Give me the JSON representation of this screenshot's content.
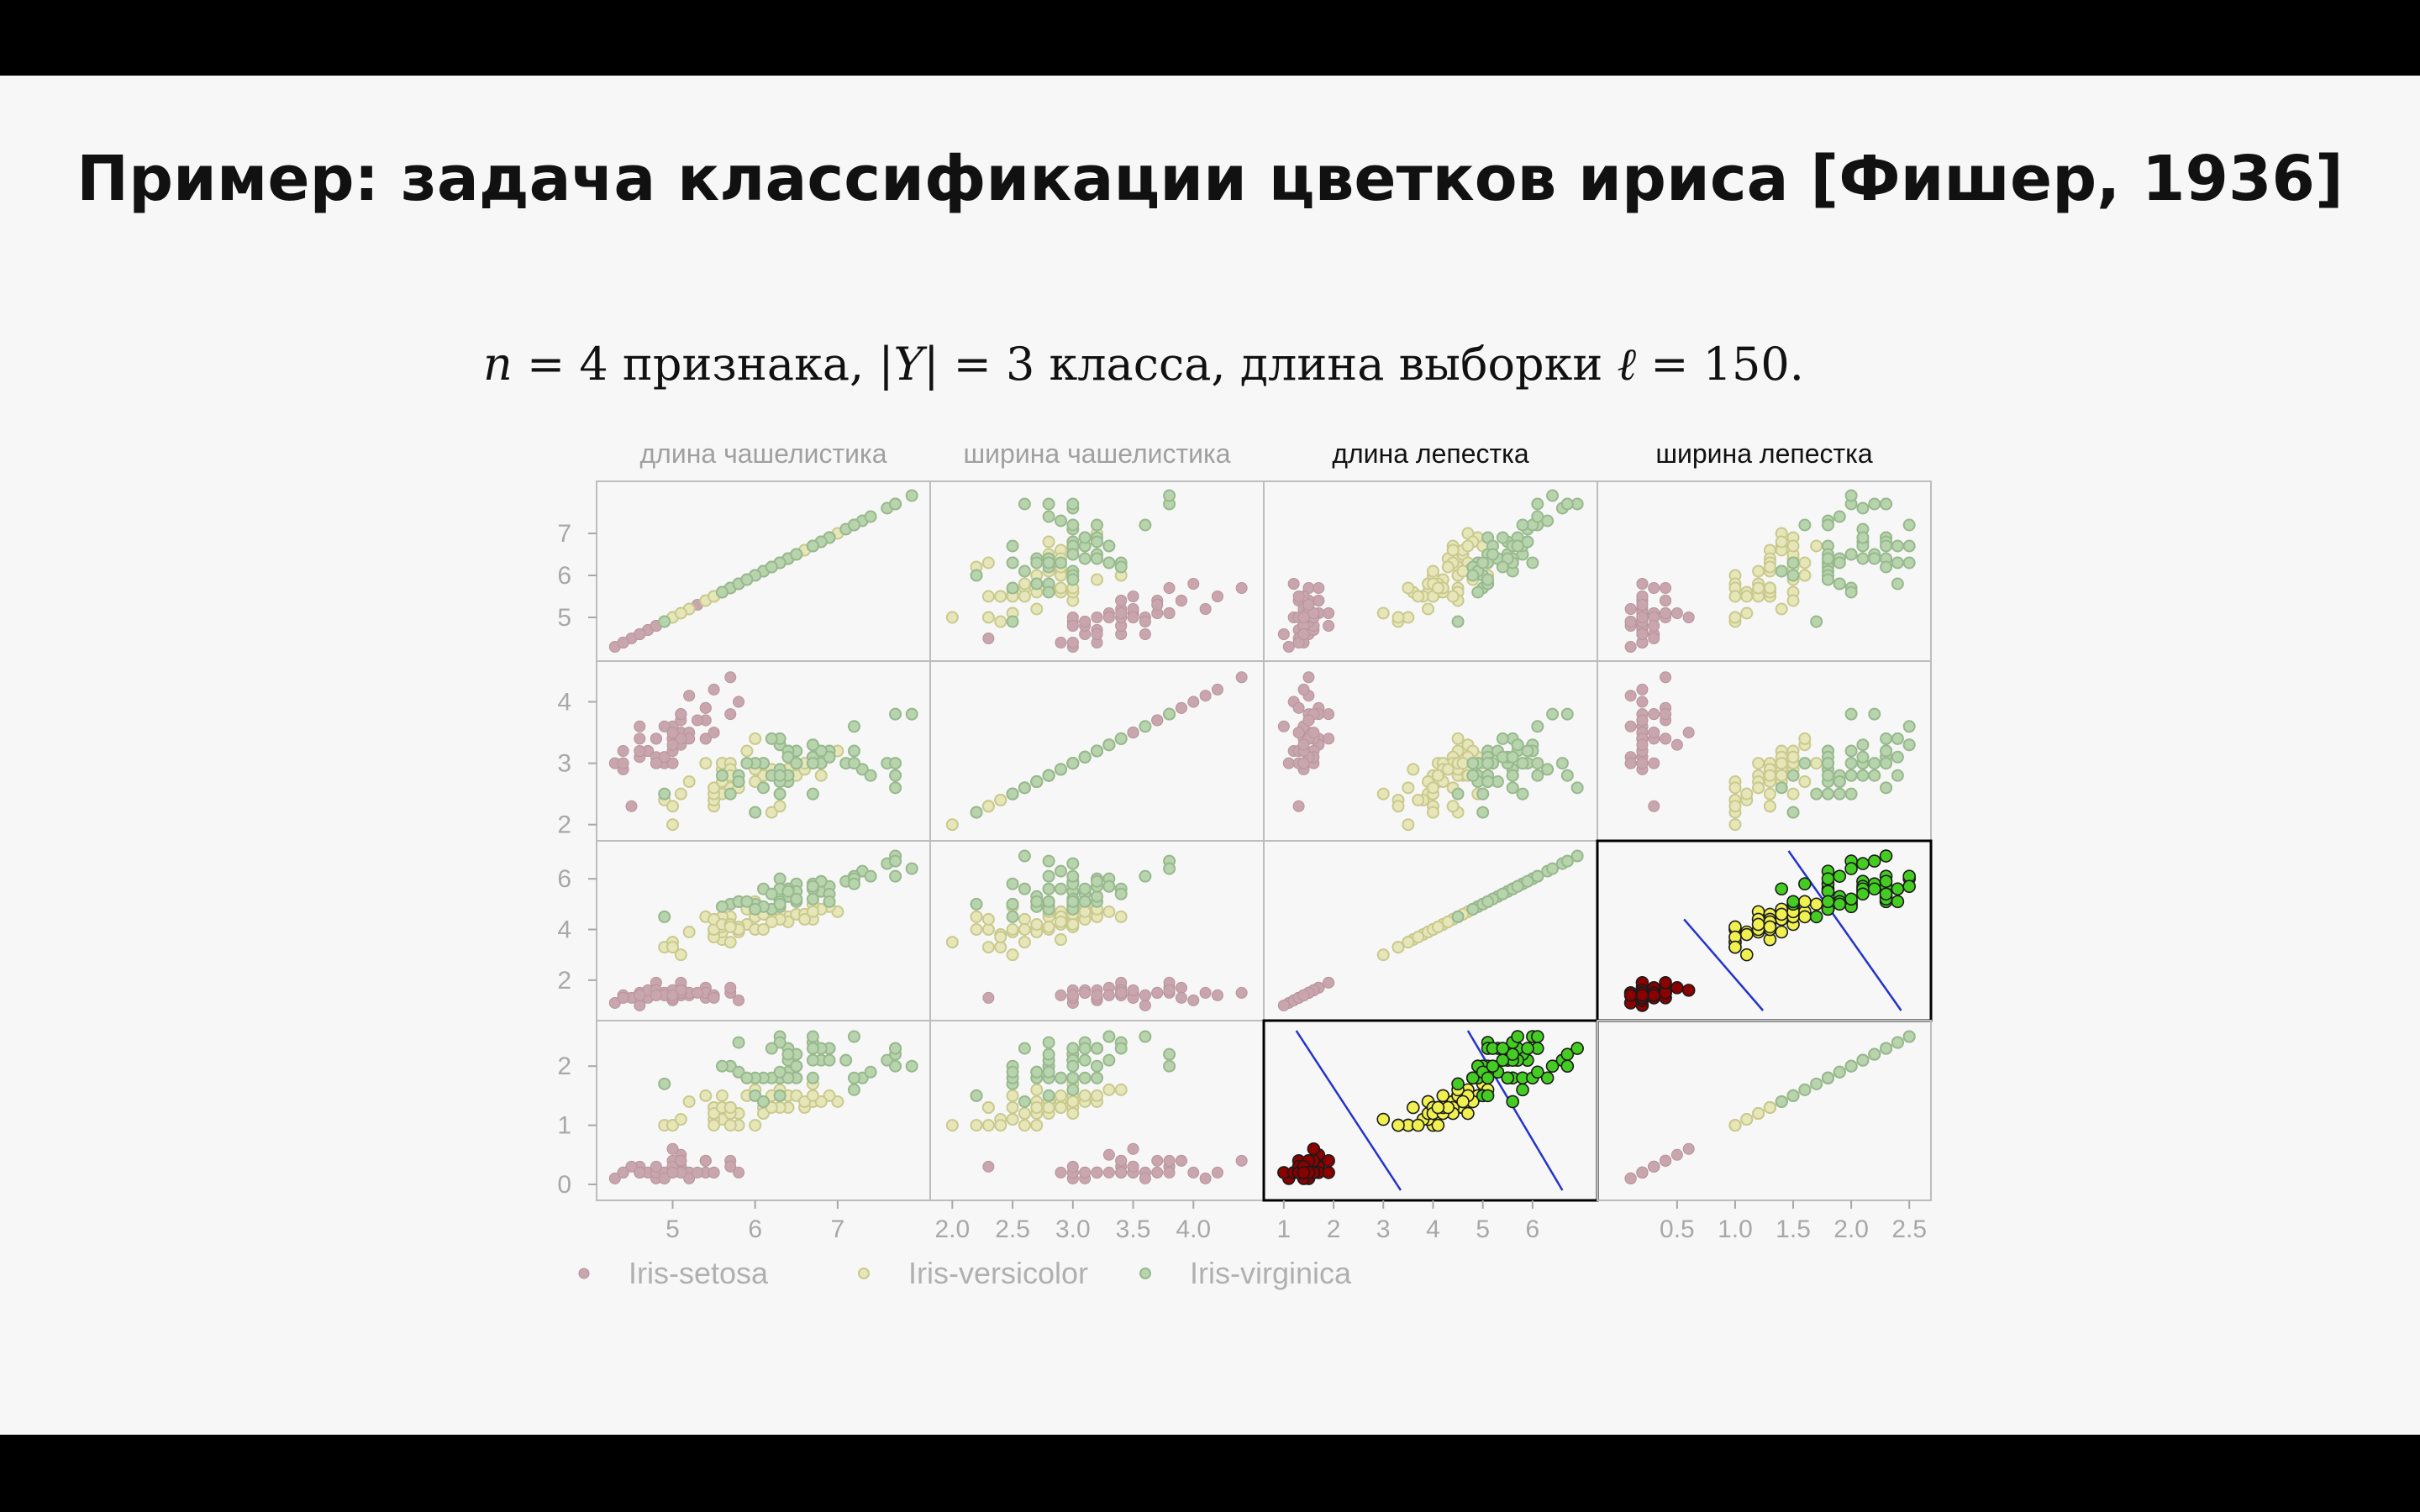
{
  "slide": {
    "title": "Пример: задача классификации цветков ириса [Фишер, 1936]",
    "subtitle": {
      "n_var": "n",
      "eq1": " = 4 признака, ",
      "y_open": "|",
      "y_var": "Y",
      "y_close": "|",
      "eq2": " = 3 класса, длина выборки ",
      "l_var": "ℓ",
      "eq3": " = 150."
    }
  },
  "colors": {
    "setosa_faded": "#c9a6ad",
    "versicolor_faded": "#e6e6b8",
    "virginica_faded": "#b7d4ad",
    "setosa": "#8b0000",
    "versicolor": "#f0f050",
    "virginica": "#44cc22",
    "separator_line": "#2233cc",
    "panel_border": "#bdbdbd",
    "highlight_border": "#000000"
  },
  "chart_data": {
    "type": "scatter",
    "variables": [
      {
        "key": "sl",
        "label": "длина чашелистика",
        "range": [
          4.2,
          8.0
        ],
        "left_ticks": [
          "5",
          "6",
          "7"
        ],
        "left_tick_values": [
          5,
          6,
          7
        ],
        "bottom_ticks": [
          "5",
          "6",
          "7"
        ],
        "bottom_tick_values": [
          5,
          6,
          7
        ]
      },
      {
        "key": "sw",
        "label": "ширина чашелистика",
        "range": [
          1.9,
          4.5
        ],
        "left_ticks": [
          "2",
          "3",
          "4"
        ],
        "left_tick_values": [
          2,
          3,
          4
        ],
        "bottom_ticks": [
          "2.0",
          "2.5",
          "3.0",
          "3.5",
          "4.0"
        ],
        "bottom_tick_values": [
          2.0,
          2.5,
          3.0,
          3.5,
          4.0
        ]
      },
      {
        "key": "pl",
        "label": "длина лепестка",
        "range": [
          0.8,
          7.1
        ],
        "left_ticks": [
          "2",
          "4",
          "6"
        ],
        "left_tick_values": [
          2,
          4,
          6
        ],
        "bottom_ticks": [
          "1",
          "2",
          "3",
          "4",
          "5",
          "6"
        ],
        "bottom_tick_values": [
          1,
          2,
          3,
          4,
          5,
          6
        ]
      },
      {
        "key": "pw",
        "label": "ширина лепестка",
        "range": [
          -0.1,
          2.6
        ],
        "left_ticks": [
          "0",
          "1",
          "2"
        ],
        "left_tick_values": [
          0,
          1,
          2
        ],
        "bottom_ticks": [
          "0.5",
          "1.0",
          "1.5",
          "2.0",
          "2.5"
        ],
        "bottom_tick_values": [
          0.5,
          1.0,
          1.5,
          2.0,
          2.5
        ]
      }
    ],
    "highlighted_panels": [
      {
        "row": 2,
        "col": 3,
        "lines": [
          [
            [
              0.56,
              4.4
            ],
            [
              1.24,
              0.8
            ]
          ],
          [
            [
              1.46,
              7.1
            ],
            [
              2.43,
              0.8
            ]
          ]
        ]
      },
      {
        "row": 3,
        "col": 2,
        "lines": [
          [
            [
              1.25,
              2.6
            ],
            [
              3.35,
              -0.1
            ]
          ],
          [
            [
              4.7,
              2.6
            ],
            [
              6.6,
              -0.1
            ]
          ]
        ]
      }
    ],
    "legend": {
      "placement": "bottom-left",
      "items": [
        {
          "label": "Iris-setosa"
        },
        {
          "label": "Iris-versicolor"
        },
        {
          "label": "Iris-virginica"
        }
      ]
    },
    "series": [
      {
        "class": "Iris-setosa",
        "points": [
          [
            5.1,
            3.5,
            1.4,
            0.2
          ],
          [
            4.9,
            3.0,
            1.4,
            0.2
          ],
          [
            4.7,
            3.2,
            1.3,
            0.2
          ],
          [
            4.6,
            3.1,
            1.5,
            0.2
          ],
          [
            5.0,
            3.6,
            1.4,
            0.2
          ],
          [
            5.4,
            3.9,
            1.7,
            0.4
          ],
          [
            4.6,
            3.4,
            1.4,
            0.3
          ],
          [
            5.0,
            3.4,
            1.5,
            0.2
          ],
          [
            4.4,
            2.9,
            1.4,
            0.2
          ],
          [
            4.9,
            3.1,
            1.5,
            0.1
          ],
          [
            5.4,
            3.7,
            1.5,
            0.2
          ],
          [
            4.8,
            3.4,
            1.6,
            0.2
          ],
          [
            4.8,
            3.0,
            1.4,
            0.1
          ],
          [
            4.3,
            3.0,
            1.1,
            0.1
          ],
          [
            5.8,
            4.0,
            1.2,
            0.2
          ],
          [
            5.7,
            4.4,
            1.5,
            0.4
          ],
          [
            5.4,
            3.9,
            1.3,
            0.4
          ],
          [
            5.1,
            3.5,
            1.4,
            0.3
          ],
          [
            5.7,
            3.8,
            1.7,
            0.3
          ],
          [
            5.1,
            3.8,
            1.5,
            0.3
          ],
          [
            5.4,
            3.4,
            1.7,
            0.2
          ],
          [
            5.1,
            3.7,
            1.5,
            0.4
          ],
          [
            4.6,
            3.6,
            1.0,
            0.2
          ],
          [
            5.1,
            3.3,
            1.7,
            0.5
          ],
          [
            4.8,
            3.4,
            1.9,
            0.2
          ],
          [
            5.0,
            3.0,
            1.6,
            0.2
          ],
          [
            5.0,
            3.4,
            1.6,
            0.4
          ],
          [
            5.2,
            3.5,
            1.5,
            0.2
          ],
          [
            5.2,
            3.4,
            1.4,
            0.2
          ],
          [
            4.7,
            3.2,
            1.6,
            0.2
          ],
          [
            4.8,
            3.1,
            1.6,
            0.2
          ],
          [
            5.4,
            3.4,
            1.5,
            0.4
          ],
          [
            5.2,
            4.1,
            1.5,
            0.1
          ],
          [
            5.5,
            4.2,
            1.4,
            0.2
          ],
          [
            4.9,
            3.1,
            1.5,
            0.2
          ],
          [
            5.0,
            3.2,
            1.2,
            0.2
          ],
          [
            5.5,
            3.5,
            1.3,
            0.2
          ],
          [
            4.9,
            3.6,
            1.4,
            0.1
          ],
          [
            4.4,
            3.0,
            1.3,
            0.2
          ],
          [
            5.1,
            3.4,
            1.5,
            0.2
          ],
          [
            5.0,
            3.5,
            1.3,
            0.3
          ],
          [
            4.5,
            2.3,
            1.3,
            0.3
          ],
          [
            4.4,
            3.2,
            1.3,
            0.2
          ],
          [
            5.0,
            3.5,
            1.6,
            0.6
          ],
          [
            5.1,
            3.8,
            1.9,
            0.4
          ],
          [
            4.8,
            3.0,
            1.4,
            0.3
          ],
          [
            5.1,
            3.8,
            1.6,
            0.2
          ],
          [
            4.6,
            3.2,
            1.4,
            0.2
          ],
          [
            5.3,
            3.7,
            1.5,
            0.2
          ],
          [
            5.0,
            3.3,
            1.4,
            0.2
          ]
        ]
      },
      {
        "class": "Iris-versicolor",
        "points": [
          [
            7.0,
            3.2,
            4.7,
            1.4
          ],
          [
            6.4,
            3.2,
            4.5,
            1.5
          ],
          [
            6.9,
            3.1,
            4.9,
            1.5
          ],
          [
            5.5,
            2.3,
            4.0,
            1.3
          ],
          [
            6.5,
            2.8,
            4.6,
            1.5
          ],
          [
            5.7,
            2.8,
            4.5,
            1.3
          ],
          [
            6.3,
            3.3,
            4.7,
            1.6
          ],
          [
            4.9,
            2.4,
            3.3,
            1.0
          ],
          [
            6.6,
            2.9,
            4.6,
            1.3
          ],
          [
            5.2,
            2.7,
            3.9,
            1.4
          ],
          [
            5.0,
            2.0,
            3.5,
            1.0
          ],
          [
            5.9,
            3.0,
            4.2,
            1.5
          ],
          [
            6.0,
            2.2,
            4.0,
            1.0
          ],
          [
            6.1,
            2.9,
            4.7,
            1.4
          ],
          [
            5.6,
            2.9,
            3.6,
            1.3
          ],
          [
            6.7,
            3.1,
            4.4,
            1.4
          ],
          [
            5.6,
            3.0,
            4.5,
            1.5
          ],
          [
            5.8,
            2.7,
            4.1,
            1.0
          ],
          [
            6.2,
            2.2,
            4.5,
            1.5
          ],
          [
            5.6,
            2.5,
            3.9,
            1.1
          ],
          [
            5.9,
            3.2,
            4.8,
            1.8
          ],
          [
            6.1,
            2.8,
            4.0,
            1.3
          ],
          [
            6.3,
            2.5,
            4.9,
            1.5
          ],
          [
            6.1,
            2.8,
            4.7,
            1.2
          ],
          [
            6.4,
            2.9,
            4.3,
            1.3
          ],
          [
            6.6,
            3.0,
            4.4,
            1.4
          ],
          [
            6.8,
            2.8,
            4.8,
            1.4
          ],
          [
            6.7,
            3.0,
            5.0,
            1.7
          ],
          [
            6.0,
            2.9,
            4.5,
            1.5
          ],
          [
            5.7,
            2.6,
            3.5,
            1.0
          ],
          [
            5.5,
            2.4,
            3.8,
            1.1
          ],
          [
            5.5,
            2.4,
            3.7,
            1.0
          ],
          [
            5.8,
            2.7,
            3.9,
            1.2
          ],
          [
            6.0,
            2.7,
            5.1,
            1.6
          ],
          [
            5.4,
            3.0,
            4.5,
            1.5
          ],
          [
            6.0,
            3.4,
            4.5,
            1.6
          ],
          [
            6.7,
            3.1,
            4.7,
            1.5
          ],
          [
            6.3,
            2.3,
            4.4,
            1.3
          ],
          [
            5.6,
            3.0,
            4.1,
            1.3
          ],
          [
            5.5,
            2.5,
            4.0,
            1.3
          ],
          [
            5.5,
            2.6,
            4.4,
            1.2
          ],
          [
            6.1,
            3.0,
            4.6,
            1.4
          ],
          [
            5.8,
            2.6,
            4.0,
            1.2
          ],
          [
            5.0,
            2.3,
            3.3,
            1.0
          ],
          [
            5.6,
            2.7,
            4.2,
            1.3
          ],
          [
            5.7,
            3.0,
            4.2,
            1.2
          ],
          [
            5.7,
            2.9,
            4.2,
            1.3
          ],
          [
            6.2,
            2.9,
            4.3,
            1.3
          ],
          [
            5.1,
            2.5,
            3.0,
            1.1
          ],
          [
            5.7,
            2.8,
            4.1,
            1.3
          ]
        ]
      },
      {
        "class": "Iris-virginica",
        "points": [
          [
            6.3,
            3.3,
            6.0,
            2.5
          ],
          [
            5.8,
            2.7,
            5.1,
            1.9
          ],
          [
            7.1,
            3.0,
            5.9,
            2.1
          ],
          [
            6.3,
            2.9,
            5.6,
            1.8
          ],
          [
            6.5,
            3.0,
            5.8,
            2.2
          ],
          [
            7.6,
            3.0,
            6.6,
            2.1
          ],
          [
            4.9,
            2.5,
            4.5,
            1.7
          ],
          [
            7.3,
            2.9,
            6.3,
            1.8
          ],
          [
            6.7,
            2.5,
            5.8,
            1.8
          ],
          [
            7.2,
            3.6,
            6.1,
            2.5
          ],
          [
            6.5,
            3.2,
            5.1,
            2.0
          ],
          [
            6.4,
            2.7,
            5.3,
            1.9
          ],
          [
            6.8,
            3.0,
            5.5,
            2.1
          ],
          [
            5.7,
            2.5,
            5.0,
            2.0
          ],
          [
            5.8,
            2.8,
            5.1,
            2.4
          ],
          [
            6.4,
            3.2,
            5.3,
            2.3
          ],
          [
            6.5,
            3.0,
            5.5,
            1.8
          ],
          [
            7.7,
            3.8,
            6.7,
            2.2
          ],
          [
            7.7,
            2.6,
            6.9,
            2.3
          ],
          [
            6.0,
            2.2,
            5.0,
            1.5
          ],
          [
            6.9,
            3.2,
            5.7,
            2.3
          ],
          [
            5.6,
            2.8,
            4.9,
            2.0
          ],
          [
            7.7,
            2.8,
            6.7,
            2.0
          ],
          [
            6.3,
            2.7,
            4.9,
            1.8
          ],
          [
            6.7,
            3.3,
            5.7,
            2.1
          ],
          [
            7.2,
            3.2,
            6.0,
            1.8
          ],
          [
            6.2,
            2.8,
            4.8,
            1.8
          ],
          [
            6.1,
            3.0,
            4.9,
            1.8
          ],
          [
            6.4,
            2.8,
            5.6,
            2.1
          ],
          [
            7.2,
            3.0,
            5.8,
            1.6
          ],
          [
            7.4,
            2.8,
            6.1,
            1.9
          ],
          [
            7.9,
            3.8,
            6.4,
            2.0
          ],
          [
            6.4,
            2.8,
            5.6,
            2.2
          ],
          [
            6.3,
            2.8,
            5.1,
            1.5
          ],
          [
            6.1,
            2.6,
            5.6,
            1.4
          ],
          [
            7.7,
            3.0,
            6.1,
            2.3
          ],
          [
            6.3,
            3.4,
            5.6,
            2.4
          ],
          [
            6.4,
            3.1,
            5.5,
            1.8
          ],
          [
            6.0,
            3.0,
            4.8,
            1.8
          ],
          [
            6.9,
            3.1,
            5.4,
            2.1
          ],
          [
            6.7,
            3.1,
            5.6,
            2.4
          ],
          [
            6.9,
            3.1,
            5.1,
            2.3
          ],
          [
            5.8,
            2.7,
            5.1,
            1.9
          ],
          [
            6.8,
            3.2,
            5.9,
            2.3
          ],
          [
            6.7,
            3.3,
            5.7,
            2.5
          ],
          [
            6.7,
            3.0,
            5.2,
            2.3
          ],
          [
            6.3,
            2.5,
            5.0,
            1.9
          ],
          [
            6.5,
            3.0,
            5.2,
            2.0
          ],
          [
            6.2,
            3.4,
            5.4,
            2.3
          ],
          [
            5.9,
            3.0,
            5.1,
            1.8
          ]
        ]
      }
    ]
  }
}
